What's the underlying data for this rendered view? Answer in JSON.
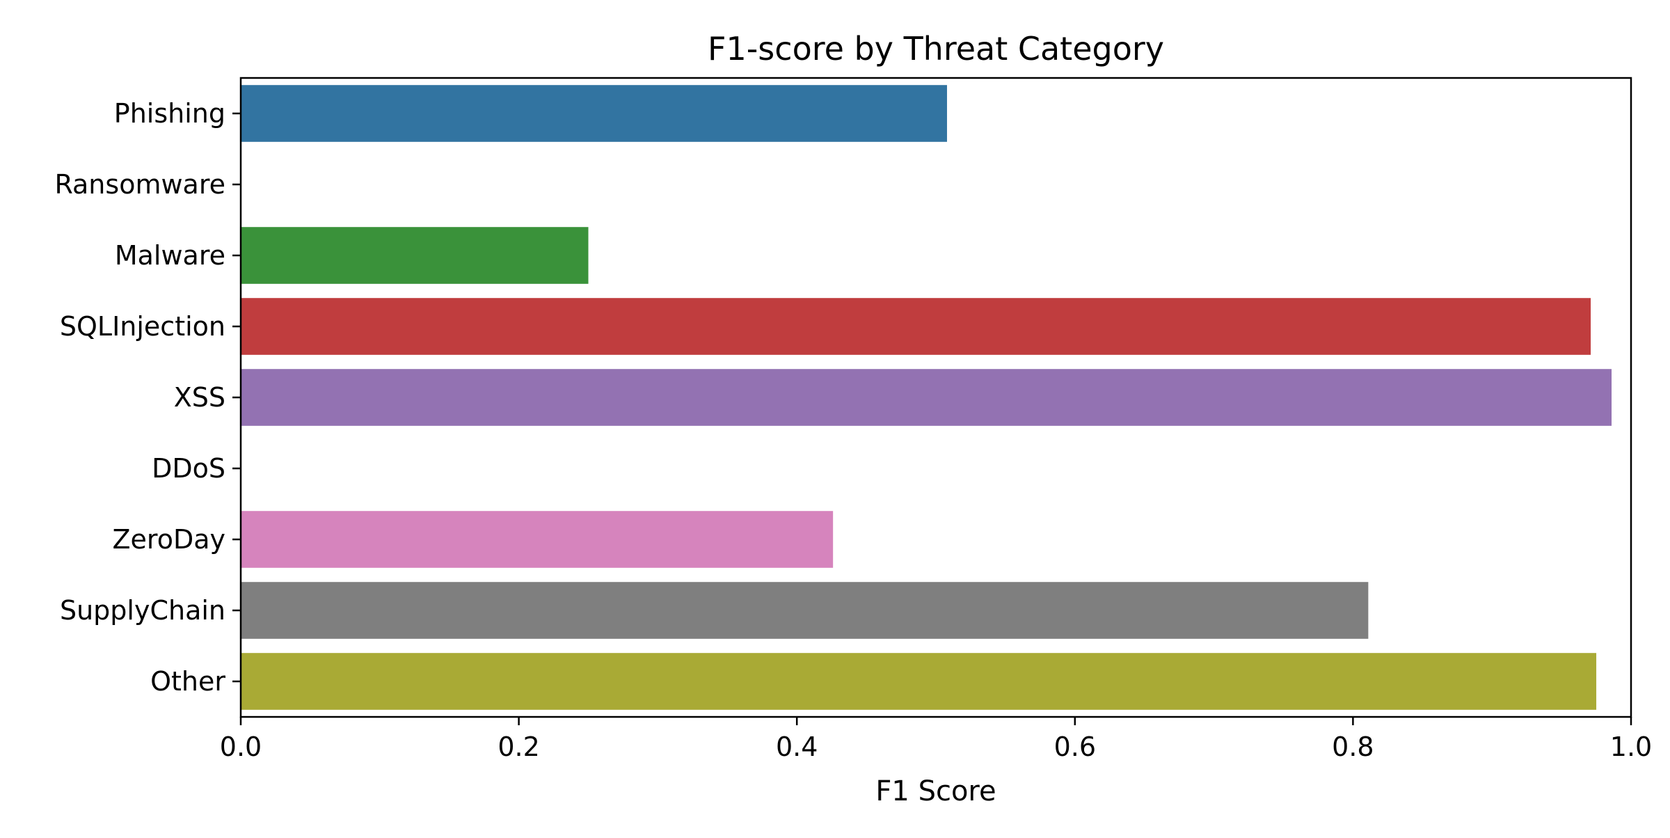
{
  "chart_data": {
    "type": "bar",
    "orientation": "horizontal",
    "title": "F1-score by Threat Category",
    "xlabel": "F1 Score",
    "ylabel": "",
    "xlim": [
      0,
      1.0
    ],
    "xticks": [
      "0.0",
      "0.2",
      "0.4",
      "0.6",
      "0.8",
      "1.0"
    ],
    "grid": false,
    "legend": "none",
    "categories": [
      "Phishing",
      "Ransomware",
      "Malware",
      "SQLInjection",
      "XSS",
      "DDoS",
      "ZeroDay",
      "SupplyChain",
      "Other"
    ],
    "values": [
      0.508,
      0.0,
      0.25,
      0.971,
      0.986,
      0.0,
      0.426,
      0.811,
      0.975
    ],
    "colors": [
      "#3274a1",
      "#e1812c",
      "#3a923a",
      "#c03d3e",
      "#9372b2",
      "#845b53",
      "#d684bd",
      "#7f7f7f",
      "#a9aa35"
    ]
  }
}
